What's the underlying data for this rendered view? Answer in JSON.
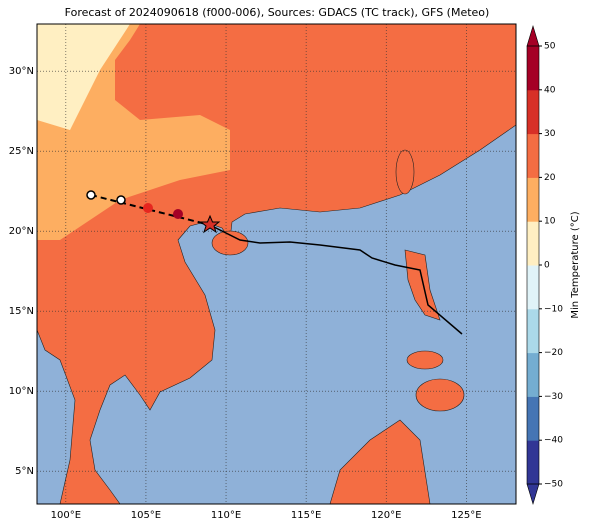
{
  "map": {
    "title": "Forecast of 2024090618 (f000-006), Sources: GDACS (TC track), GFS (Meteo)",
    "xlim": [
      98.2,
      128.1
    ],
    "ylim": [
      2.95,
      32.95
    ],
    "xticks": [
      {
        "value": 100,
        "label": "100°E"
      },
      {
        "value": 105,
        "label": "105°E"
      },
      {
        "value": 110,
        "label": "110°E"
      },
      {
        "value": 115,
        "label": "115°E"
      },
      {
        "value": 120,
        "label": "120°E"
      },
      {
        "value": 125,
        "label": "125°E"
      }
    ],
    "yticks": [
      {
        "value": 5,
        "label": "5°N"
      },
      {
        "value": 10,
        "label": "10°N"
      },
      {
        "value": 15,
        "label": "15°N"
      },
      {
        "value": 20,
        "label": "20°N"
      },
      {
        "value": 25,
        "label": "25°N"
      },
      {
        "value": 30,
        "label": "30°N"
      }
    ],
    "colorbar": {
      "label": "Min Temperature (°C)",
      "lim": [
        -50,
        50
      ],
      "ticks": [
        {
          "value": -50,
          "label": "−50"
        },
        {
          "value": -40,
          "label": "−40"
        },
        {
          "value": -30,
          "label": "−30"
        },
        {
          "value": -20,
          "label": "−20"
        },
        {
          "value": -10,
          "label": "−10"
        },
        0,
        10,
        20,
        30,
        40,
        50
      ],
      "colors": [
        "#313695",
        "#4575b4",
        "#74add1",
        "#abd9e9",
        "#e0f3f8",
        "#ffefc2",
        "#fdae61",
        "#f46d43",
        "#d73027",
        "#a50026"
      ]
    }
  }
}
